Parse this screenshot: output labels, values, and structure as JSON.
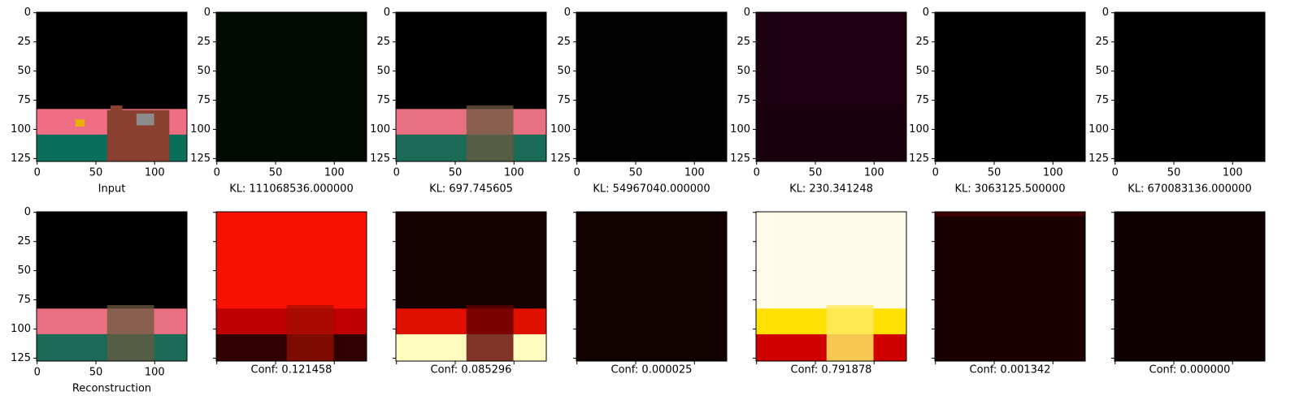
{
  "chart_data": {
    "type": "image_grid",
    "xlim": [
      -0.5,
      127.5
    ],
    "ylim": [
      127.5,
      -0.5
    ],
    "xticks": [
      0,
      50,
      100
    ],
    "yticks": [
      0,
      25,
      50,
      75,
      100,
      125
    ],
    "rows": [
      [
        {
          "label": "Input",
          "tick_labels": true
        },
        {
          "label": "KL: 111068536.000000",
          "tick_labels": true
        },
        {
          "label": "KL: 697.745605",
          "tick_labels": true
        },
        {
          "label": "KL: 54967040.000000",
          "tick_labels": true
        },
        {
          "label": "KL: 230.341248",
          "tick_labels": true
        },
        {
          "label": "KL: 3063125.500000",
          "tick_labels": true
        },
        {
          "label": "KL: 670083136.000000",
          "tick_labels": true
        }
      ],
      [
        {
          "label": "Reconstruction",
          "tick_labels": true
        },
        {
          "label": "Conf: 0.121458",
          "tick_labels": false
        },
        {
          "label": "Conf: 0.085296",
          "tick_labels": false
        },
        {
          "label": "Conf: 0.000025",
          "tick_labels": false
        },
        {
          "label": "Conf: 0.791878",
          "tick_labels": false
        },
        {
          "label": "Conf: 0.001342",
          "tick_labels": false
        },
        {
          "label": "Conf: 0.000000",
          "tick_labels": false
        }
      ]
    ]
  }
}
